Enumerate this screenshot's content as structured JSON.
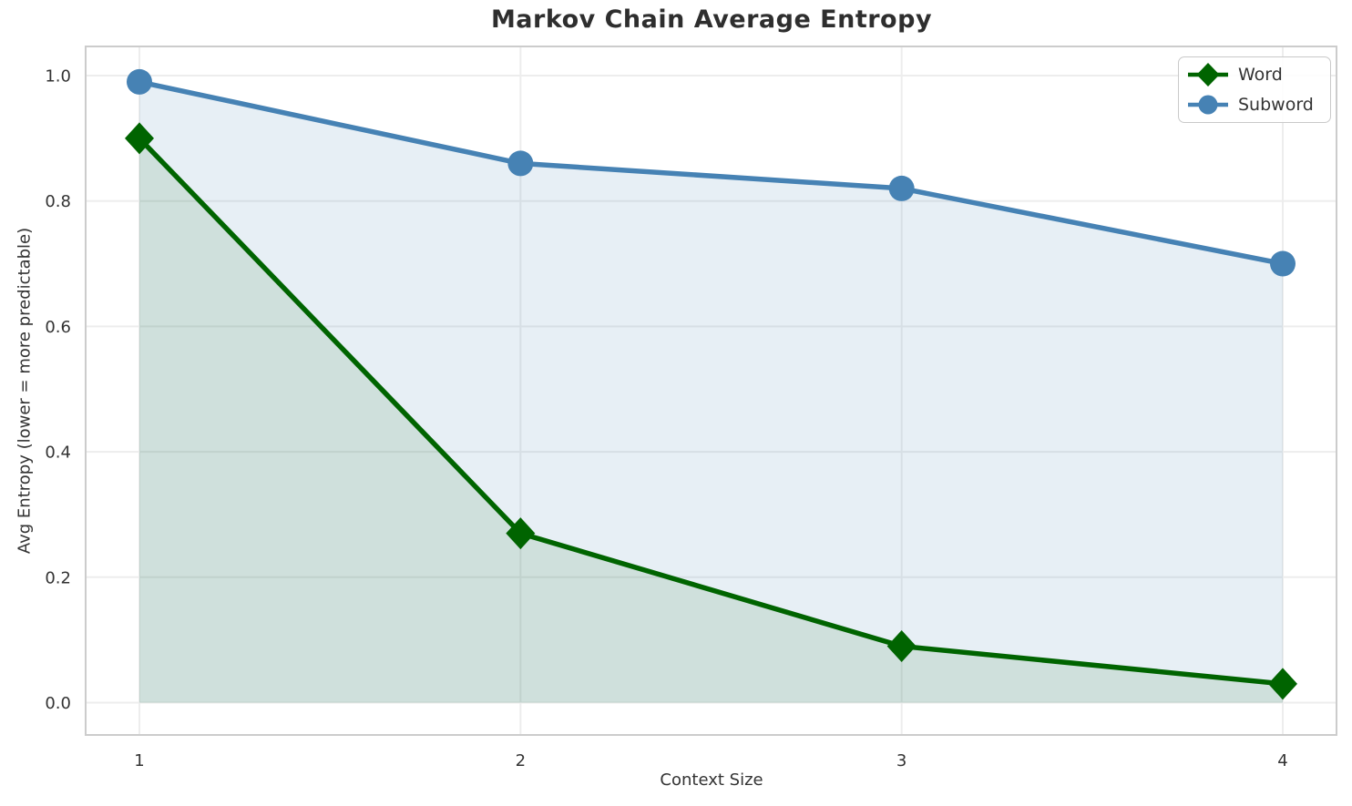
{
  "chart_data": {
    "type": "line",
    "title": "Markov Chain Average Entropy",
    "xlabel": "Context Size",
    "ylabel": "Avg Entropy (lower = more predictable)",
    "x": [
      1,
      2,
      3,
      4
    ],
    "x_tick_labels": [
      "1",
      "2",
      "3",
      "4"
    ],
    "y_ticks": [
      0,
      0.2,
      0.4,
      0.6,
      0.8,
      1.0
    ],
    "y_tick_labels": [
      "0.0",
      "0.2",
      "0.4",
      "0.6",
      "0.8",
      "1.0"
    ],
    "xlim": [
      0.85,
      4.15
    ],
    "ylim": [
      -0.05,
      1.04
    ],
    "grid": true,
    "legend_position": "upper-right",
    "series": [
      {
        "name": "Word",
        "marker": "diamond",
        "color": "#006400",
        "fill": true,
        "fill_opacity": 0.1,
        "values": [
          0.9,
          0.27,
          0.09,
          0.03
        ]
      },
      {
        "name": "Subword",
        "marker": "circle",
        "color": "#4682B4",
        "fill": true,
        "fill_opacity": 0.13,
        "values": [
          0.99,
          0.86,
          0.82,
          0.7
        ]
      }
    ],
    "colors": {
      "word_green": "#006400",
      "subword_blue": "#4682B4",
      "gridline": "#EDEDED",
      "spine": "#CCCCCC",
      "tick_text": "#333333",
      "title_text": "#2E2E2E"
    }
  }
}
